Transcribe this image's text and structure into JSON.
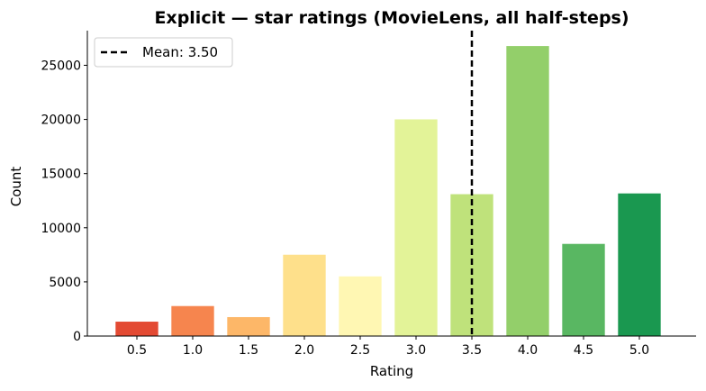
{
  "chart_data": {
    "type": "bar",
    "title": "Explicit — star ratings (MovieLens, all half-steps)",
    "xlabel": "Rating",
    "ylabel": "Count",
    "categories": [
      "0.5",
      "1.0",
      "1.5",
      "2.0",
      "2.5",
      "3.0",
      "3.5",
      "4.0",
      "4.5",
      "5.0"
    ],
    "values": [
      1370,
      2810,
      1790,
      7550,
      5550,
      20050,
      13140,
      26820,
      8550,
      13210
    ],
    "colors": [
      "#e34a33",
      "#f6854e",
      "#fdb768",
      "#fee08b",
      "#fff7b3",
      "#e3f398",
      "#bfe27b",
      "#93cf6a",
      "#59b762",
      "#1a9850"
    ],
    "ylim": [
      0,
      28200
    ],
    "yticks": [
      0,
      5000,
      10000,
      15000,
      20000,
      25000
    ],
    "grid": false,
    "mean_line": {
      "value": 3.5,
      "label": "Mean: 3.50",
      "color": "#000000"
    },
    "legend": {
      "position": "top-left"
    }
  }
}
